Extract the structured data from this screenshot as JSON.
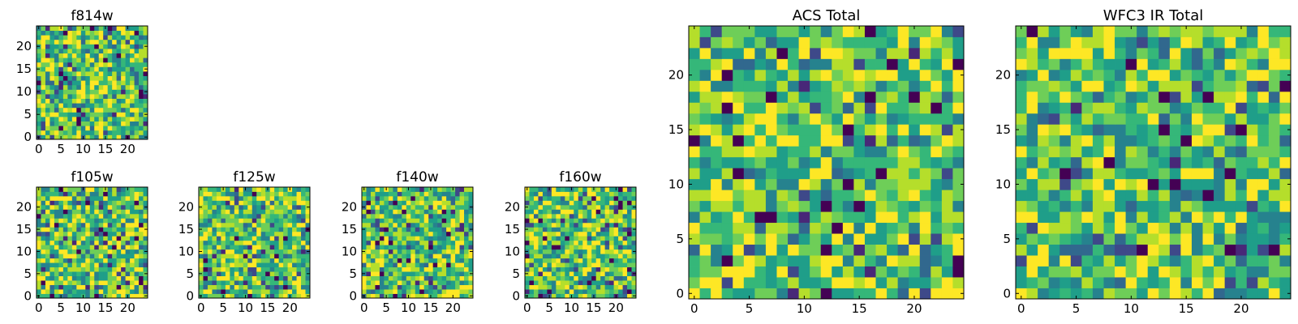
{
  "chart_data": [
    {
      "id": "f814w",
      "type": "heatmap",
      "title": "f814w",
      "colormap": "viridis",
      "grid_size": 25,
      "grid": false,
      "xlim": [
        0,
        24
      ],
      "ylim": [
        0,
        24
      ],
      "xticks": [
        0,
        5,
        10,
        15,
        20
      ],
      "yticks": [
        0,
        5,
        10,
        15,
        20
      ],
      "xtick_labels": [
        "0",
        "5",
        "10",
        "15",
        "20"
      ],
      "ytick_labels": [
        "0",
        "5",
        "10",
        "15",
        "20"
      ],
      "values_note": "25x25 noise image, values not labeled"
    },
    {
      "id": "f105w",
      "type": "heatmap",
      "title": "f105w",
      "colormap": "viridis",
      "grid_size": 25,
      "grid": false,
      "xlim": [
        0,
        24
      ],
      "ylim": [
        0,
        24
      ],
      "xticks": [
        0,
        5,
        10,
        15,
        20
      ],
      "yticks": [
        0,
        5,
        10,
        15,
        20
      ],
      "xtick_labels": [
        "0",
        "5",
        "10",
        "15",
        "20"
      ],
      "ytick_labels": [
        "0",
        "5",
        "10",
        "15",
        "20"
      ]
    },
    {
      "id": "f125w",
      "type": "heatmap",
      "title": "f125w",
      "colormap": "viridis",
      "grid_size": 25,
      "grid": false,
      "xlim": [
        0,
        24
      ],
      "ylim": [
        0,
        24
      ],
      "xticks": [
        0,
        5,
        10,
        15,
        20
      ],
      "yticks": [
        0,
        5,
        10,
        15,
        20
      ],
      "xtick_labels": [
        "0",
        "5",
        "10",
        "15",
        "20"
      ],
      "ytick_labels": [
        "0",
        "5",
        "10",
        "15",
        "20"
      ]
    },
    {
      "id": "f140w",
      "type": "heatmap",
      "title": "f140w",
      "colormap": "viridis",
      "grid_size": 25,
      "grid": false,
      "xlim": [
        0,
        24
      ],
      "ylim": [
        0,
        24
      ],
      "xticks": [
        0,
        5,
        10,
        15,
        20
      ],
      "yticks": [
        0,
        5,
        10,
        15,
        20
      ],
      "xtick_labels": [
        "0",
        "5",
        "10",
        "15",
        "20"
      ],
      "ytick_labels": [
        "0",
        "5",
        "10",
        "15",
        "20"
      ]
    },
    {
      "id": "f160w",
      "type": "heatmap",
      "title": "f160w",
      "colormap": "viridis",
      "grid_size": 25,
      "grid": false,
      "xlim": [
        0,
        24
      ],
      "ylim": [
        0,
        24
      ],
      "xticks": [
        0,
        5,
        10,
        15,
        20
      ],
      "yticks": [
        0,
        5,
        10,
        15,
        20
      ],
      "xtick_labels": [
        "0",
        "5",
        "10",
        "15",
        "20"
      ],
      "ytick_labels": [
        "0",
        "5",
        "10",
        "15",
        "20"
      ]
    },
    {
      "id": "acs",
      "type": "heatmap",
      "title": "ACS Total",
      "colormap": "viridis",
      "grid_size": 25,
      "grid": false,
      "xlim": [
        0,
        24
      ],
      "ylim": [
        0,
        24
      ],
      "xticks": [
        0,
        5,
        10,
        15,
        20
      ],
      "yticks": [
        0,
        5,
        10,
        15,
        20
      ],
      "xtick_labels": [
        "0",
        "5",
        "10",
        "15",
        "20"
      ],
      "ytick_labels": [
        "0",
        "5",
        "10",
        "15",
        "20"
      ]
    },
    {
      "id": "wfc3",
      "type": "heatmap",
      "title": "WFC3 IR Total",
      "colormap": "viridis",
      "grid_size": 25,
      "grid": false,
      "xlim": [
        0,
        24
      ],
      "ylim": [
        0,
        24
      ],
      "xticks": [
        0,
        5,
        10,
        15,
        20
      ],
      "yticks": [
        0,
        5,
        10,
        15,
        20
      ],
      "xtick_labels": [
        "0",
        "5",
        "10",
        "15",
        "20"
      ],
      "ytick_labels": [
        "0",
        "5",
        "10",
        "15",
        "20"
      ]
    }
  ],
  "colors": {
    "viridis": [
      "#440154",
      "#482878",
      "#3e4989",
      "#31688e",
      "#26828e",
      "#1f9e89",
      "#35b779",
      "#6ece58",
      "#b5de2b",
      "#fde725"
    ],
    "frame": "#000000",
    "background": "#ffffff"
  }
}
